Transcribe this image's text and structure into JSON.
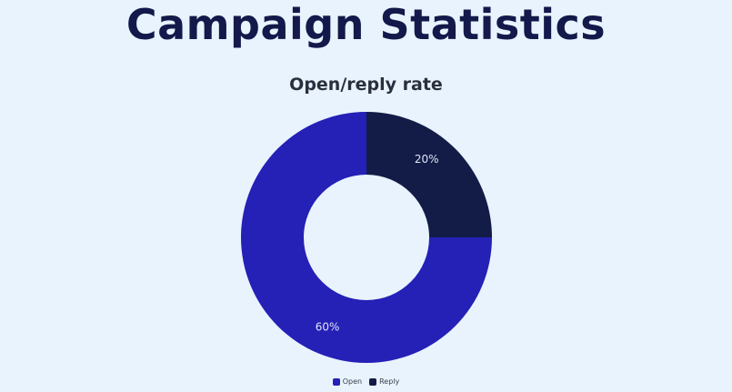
{
  "page": {
    "title": "Campaign Statistics"
  },
  "colors": {
    "background": "#e8f3fd",
    "open": "#2520b6",
    "reply": "#131c47"
  },
  "chart_data": {
    "type": "pie",
    "style": "donut",
    "title": "Open/reply rate",
    "categories": [
      "Open",
      "Reply"
    ],
    "values": [
      60,
      20
    ],
    "data_labels": [
      "60%",
      "20%"
    ],
    "legend": {
      "position": "bottom",
      "entries": [
        "Open",
        "Reply"
      ]
    }
  }
}
